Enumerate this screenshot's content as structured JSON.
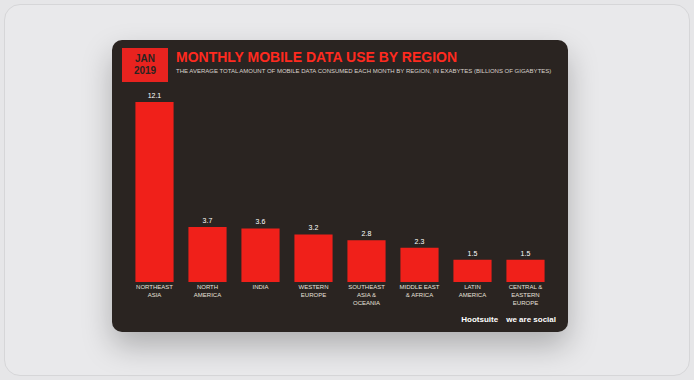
{
  "chart_data": {
    "type": "bar",
    "badge": "JAN 2019",
    "title": "MONTHLY MOBILE DATA USE BY REGION",
    "subtitle": "THE AVERAGE TOTAL AMOUNT OF MOBILE DATA CONSUMED EACH MONTH BY REGION, IN EXABYTES (BILLIONS OF GIGABYTES)",
    "categories": [
      "NORTHEAST ASIA",
      "NORTH AMERICA",
      "INDIA",
      "WESTERN EUROPE",
      "SOUTHEAST ASIA & OCEANIA",
      "MIDDLE EAST & AFRICA",
      "LATIN AMERICA",
      "CENTRAL & EASTERN EUROPE"
    ],
    "values": [
      12.1,
      3.7,
      3.6,
      3.2,
      2.8,
      2.3,
      1.5,
      1.5
    ],
    "color": "#f0201a",
    "ylim": [
      0,
      12.1
    ],
    "yticks": [],
    "grid": false,
    "data_labels": true,
    "tick_labels": "x",
    "logos": [
      "Hootsuite",
      "we are social"
    ]
  }
}
